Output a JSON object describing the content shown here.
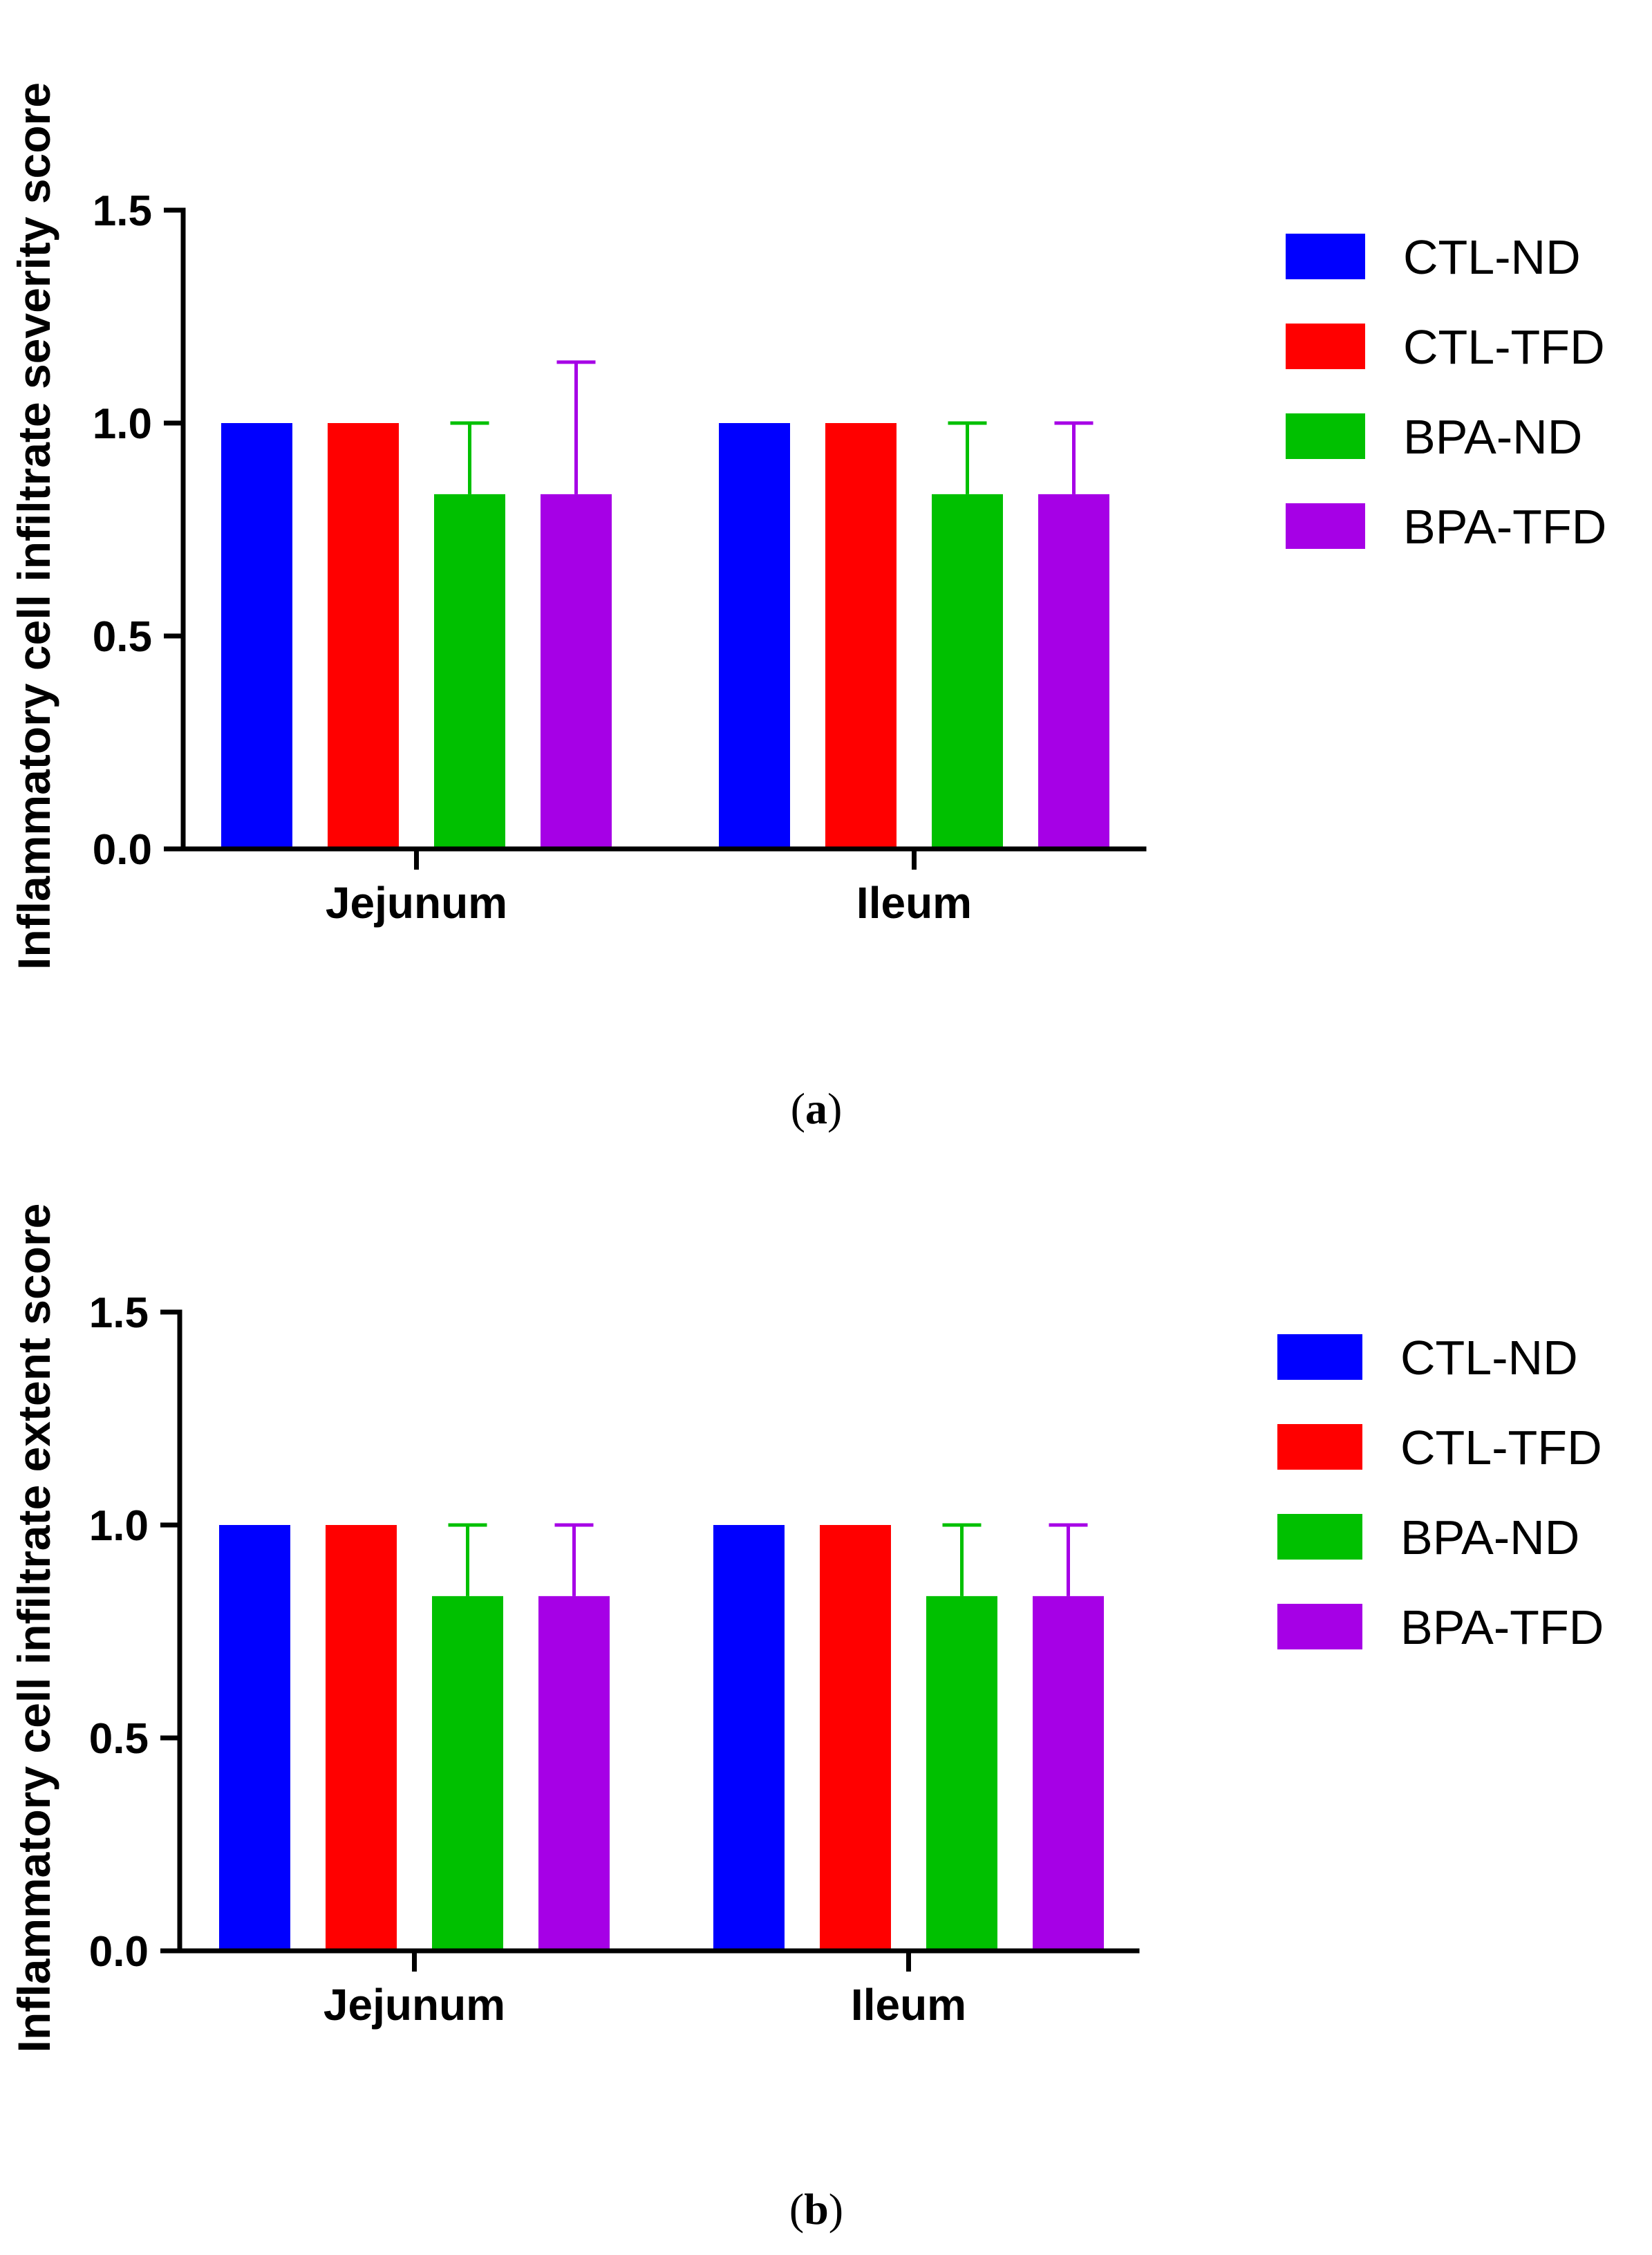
{
  "chart_data": [
    {
      "type": "bar",
      "panel": "a",
      "ylabel": "Inflammatory cell infiltrate severity score",
      "xlabel": "",
      "ylim": [
        0,
        1.5
      ],
      "yticks": [
        "0.0",
        "0.5",
        "1.0",
        "1.5"
      ],
      "categories": [
        "Jejunum",
        "Ileum"
      ],
      "series": [
        {
          "name": "CTL-ND",
          "color": "#0000ff",
          "values": [
            1.0,
            1.0
          ],
          "error": [
            0,
            0
          ]
        },
        {
          "name": "CTL-TFD",
          "color": "#ff0000",
          "values": [
            1.0,
            1.0
          ],
          "error": [
            0,
            0
          ]
        },
        {
          "name": "BPA-ND",
          "color": "#00c000",
          "values": [
            0.833,
            0.833
          ],
          "error": [
            0.167,
            0.167
          ]
        },
        {
          "name": "BPA-TFD",
          "color": "#a600e6",
          "values": [
            0.833,
            0.833
          ],
          "error": [
            0.31,
            0.167
          ]
        }
      ]
    },
    {
      "type": "bar",
      "panel": "b",
      "ylabel": "Inflammatory cell infiltrate extent score",
      "xlabel": "",
      "ylim": [
        0,
        1.5
      ],
      "yticks": [
        "0.0",
        "0.5",
        "1.0",
        "1.5"
      ],
      "categories": [
        "Jejunum",
        "Ileum"
      ],
      "series": [
        {
          "name": "CTL-ND",
          "color": "#0000ff",
          "values": [
            1.0,
            1.0
          ],
          "error": [
            0,
            0
          ]
        },
        {
          "name": "CTL-TFD",
          "color": "#ff0000",
          "values": [
            1.0,
            1.0
          ],
          "error": [
            0,
            0
          ]
        },
        {
          "name": "BPA-ND",
          "color": "#00c000",
          "values": [
            0.833,
            0.833
          ],
          "error": [
            0.167,
            0.167
          ]
        },
        {
          "name": "BPA-TFD",
          "color": "#a600e6",
          "values": [
            0.833,
            0.833
          ],
          "error": [
            0.167,
            0.167
          ]
        }
      ]
    }
  ]
}
